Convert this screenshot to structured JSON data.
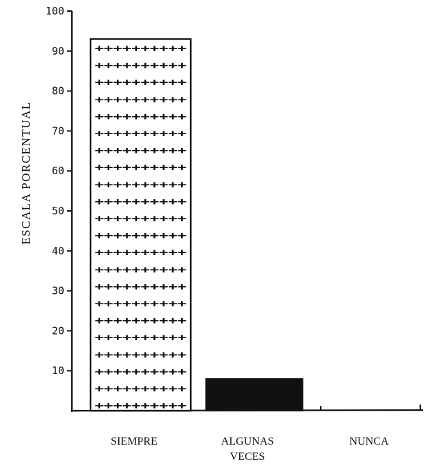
{
  "chart_data": {
    "type": "bar",
    "title": "",
    "xlabel": "",
    "ylabel": "ESCALA PORCENTUAL",
    "ylim": [
      0,
      100
    ],
    "yticks": [
      "10",
      "20",
      "30",
      "40",
      "50",
      "60",
      "70",
      "80",
      "90",
      "100"
    ],
    "ytick_values": [
      10,
      20,
      30,
      40,
      50,
      60,
      70,
      80,
      90,
      100
    ],
    "categories": [
      [
        "SIEMPRE"
      ],
      [
        "ALGUNAS",
        "VECES"
      ],
      [
        "NUNCA"
      ]
    ],
    "values": [
      93,
      8,
      0
    ],
    "bar_fills": [
      "cross-hatch",
      "solid",
      "none"
    ],
    "colors": {
      "ink": "#111111",
      "solid_bar": "#111111",
      "background": "#ffffff"
    },
    "grid": false,
    "legend": "none"
  }
}
